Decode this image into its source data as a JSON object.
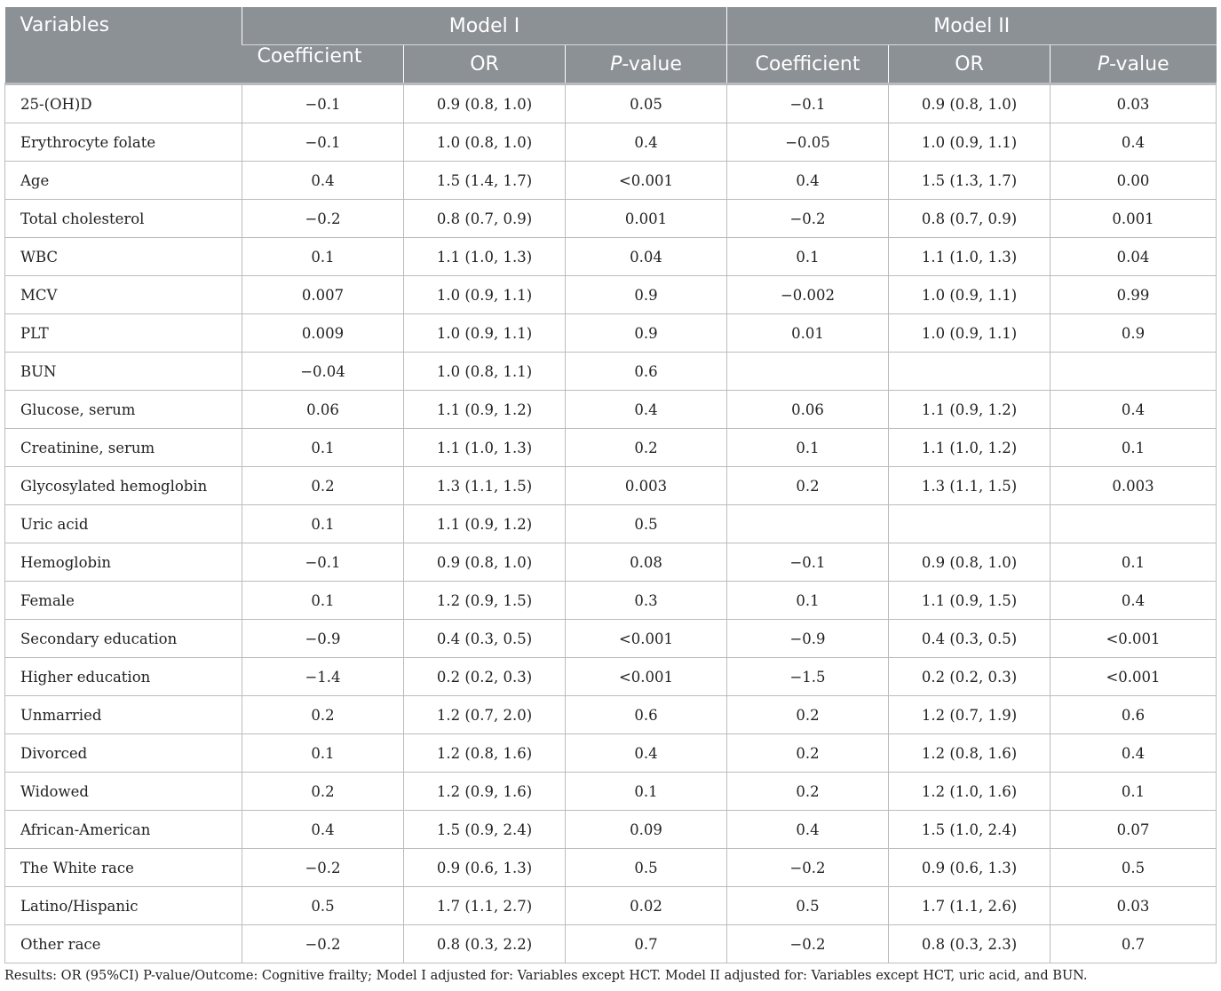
{
  "header": {
    "variables": "Variables",
    "model1": "Model I",
    "model2": "Model II",
    "coefficient": "Coefficient",
    "or": "OR",
    "p_italic": "P",
    "p_rest": "-value"
  },
  "rows": [
    {
      "v": "25-(OH)D",
      "c1": "−0.1",
      "or1": "0.9 (0.8, 1.0)",
      "p1": "0.05",
      "c2": "−0.1",
      "or2": "0.9 (0.8, 1.0)",
      "p2": "0.03"
    },
    {
      "v": "Erythrocyte folate",
      "c1": "−0.1",
      "or1": "1.0 (0.8, 1.0)",
      "p1": "0.4",
      "c2": "−0.05",
      "or2": "1.0 (0.9, 1.1)",
      "p2": "0.4"
    },
    {
      "v": "Age",
      "c1": "0.4",
      "or1": "1.5 (1.4, 1.7)",
      "p1": "<0.001",
      "c2": "0.4",
      "or2": "1.5 (1.3, 1.7)",
      "p2": "0.00"
    },
    {
      "v": "Total cholesterol",
      "c1": "−0.2",
      "or1": "0.8 (0.7, 0.9)",
      "p1": "0.001",
      "c2": "−0.2",
      "or2": "0.8 (0.7, 0.9)",
      "p2": "0.001"
    },
    {
      "v": "WBC",
      "c1": "0.1",
      "or1": "1.1 (1.0, 1.3)",
      "p1": "0.04",
      "c2": "0.1",
      "or2": "1.1 (1.0, 1.3)",
      "p2": "0.04"
    },
    {
      "v": "MCV",
      "c1": "0.007",
      "or1": "1.0 (0.9, 1.1)",
      "p1": "0.9",
      "c2": "−0.002",
      "or2": "1.0 (0.9, 1.1)",
      "p2": "0.99"
    },
    {
      "v": "PLT",
      "c1": "0.009",
      "or1": "1.0 (0.9, 1.1)",
      "p1": "0.9",
      "c2": "0.01",
      "or2": "1.0 (0.9, 1.1)",
      "p2": "0.9"
    },
    {
      "v": "BUN",
      "c1": "−0.04",
      "or1": "1.0 (0.8, 1.1)",
      "p1": "0.6",
      "c2": "",
      "or2": "",
      "p2": ""
    },
    {
      "v": "Glucose, serum",
      "c1": "0.06",
      "or1": "1.1 (0.9, 1.2)",
      "p1": "0.4",
      "c2": "0.06",
      "or2": "1.1 (0.9, 1.2)",
      "p2": "0.4"
    },
    {
      "v": "Creatinine, serum",
      "c1": "0.1",
      "or1": "1.1 (1.0, 1.3)",
      "p1": "0.2",
      "c2": "0.1",
      "or2": "1.1 (1.0, 1.2)",
      "p2": "0.1"
    },
    {
      "v": "Glycosylated hemoglobin",
      "c1": "0.2",
      "or1": "1.3 (1.1, 1.5)",
      "p1": "0.003",
      "c2": "0.2",
      "or2": "1.3 (1.1, 1.5)",
      "p2": "0.003"
    },
    {
      "v": "Uric acid",
      "c1": "0.1",
      "or1": "1.1 (0.9, 1.2)",
      "p1": "0.5",
      "c2": "",
      "or2": "",
      "p2": ""
    },
    {
      "v": "Hemoglobin",
      "c1": "−0.1",
      "or1": "0.9 (0.8, 1.0)",
      "p1": "0.08",
      "c2": "−0.1",
      "or2": "0.9 (0.8, 1.0)",
      "p2": "0.1"
    },
    {
      "v": "Female",
      "c1": "0.1",
      "or1": "1.2 (0.9, 1.5)",
      "p1": "0.3",
      "c2": "0.1",
      "or2": "1.1 (0.9, 1.5)",
      "p2": "0.4"
    },
    {
      "v": "Secondary education",
      "c1": "−0.9",
      "or1": "0.4 (0.3, 0.5)",
      "p1": "<0.001",
      "c2": "−0.9",
      "or2": "0.4 (0.3, 0.5)",
      "p2": "<0.001"
    },
    {
      "v": "Higher education",
      "c1": "−1.4",
      "or1": "0.2 (0.2, 0.3)",
      "p1": "<0.001",
      "c2": "−1.5",
      "or2": "0.2 (0.2, 0.3)",
      "p2": "<0.001"
    },
    {
      "v": "Unmarried",
      "c1": "0.2",
      "or1": "1.2 (0.7, 2.0)",
      "p1": "0.6",
      "c2": "0.2",
      "or2": "1.2 (0.7, 1.9)",
      "p2": "0.6"
    },
    {
      "v": "Divorced",
      "c1": "0.1",
      "or1": "1.2 (0.8, 1.6)",
      "p1": "0.4",
      "c2": "0.2",
      "or2": "1.2 (0.8, 1.6)",
      "p2": "0.4"
    },
    {
      "v": "Widowed",
      "c1": "0.2",
      "or1": "1.2 (0.9, 1.6)",
      "p1": "0.1",
      "c2": "0.2",
      "or2": "1.2 (1.0, 1.6)",
      "p2": "0.1"
    },
    {
      "v": "African-American",
      "c1": "0.4",
      "or1": "1.5 (0.9, 2.4)",
      "p1": "0.09",
      "c2": "0.4",
      "or2": "1.5 (1.0, 2.4)",
      "p2": "0.07"
    },
    {
      "v": "The White race",
      "c1": "−0.2",
      "or1": "0.9 (0.6, 1.3)",
      "p1": "0.5",
      "c2": "−0.2",
      "or2": "0.9 (0.6, 1.3)",
      "p2": "0.5"
    },
    {
      "v": "Latino/Hispanic",
      "c1": "0.5",
      "or1": "1.7 (1.1, 2.7)",
      "p1": "0.02",
      "c2": "0.5",
      "or2": "1.7 (1.1, 2.6)",
      "p2": "0.03"
    },
    {
      "v": "Other race",
      "c1": "−0.2",
      "or1": "0.8 (0.3, 2.2)",
      "p1": "0.7",
      "c2": "−0.2",
      "or2": "0.8 (0.3, 2.3)",
      "p2": "0.7"
    }
  ],
  "footnote": "Results: OR (95%CI) P-value/Outcome: Cognitive frailty; Model I adjusted for: Variables except HCT. Model II adjusted for: Variables except HCT, uric acid, and BUN."
}
